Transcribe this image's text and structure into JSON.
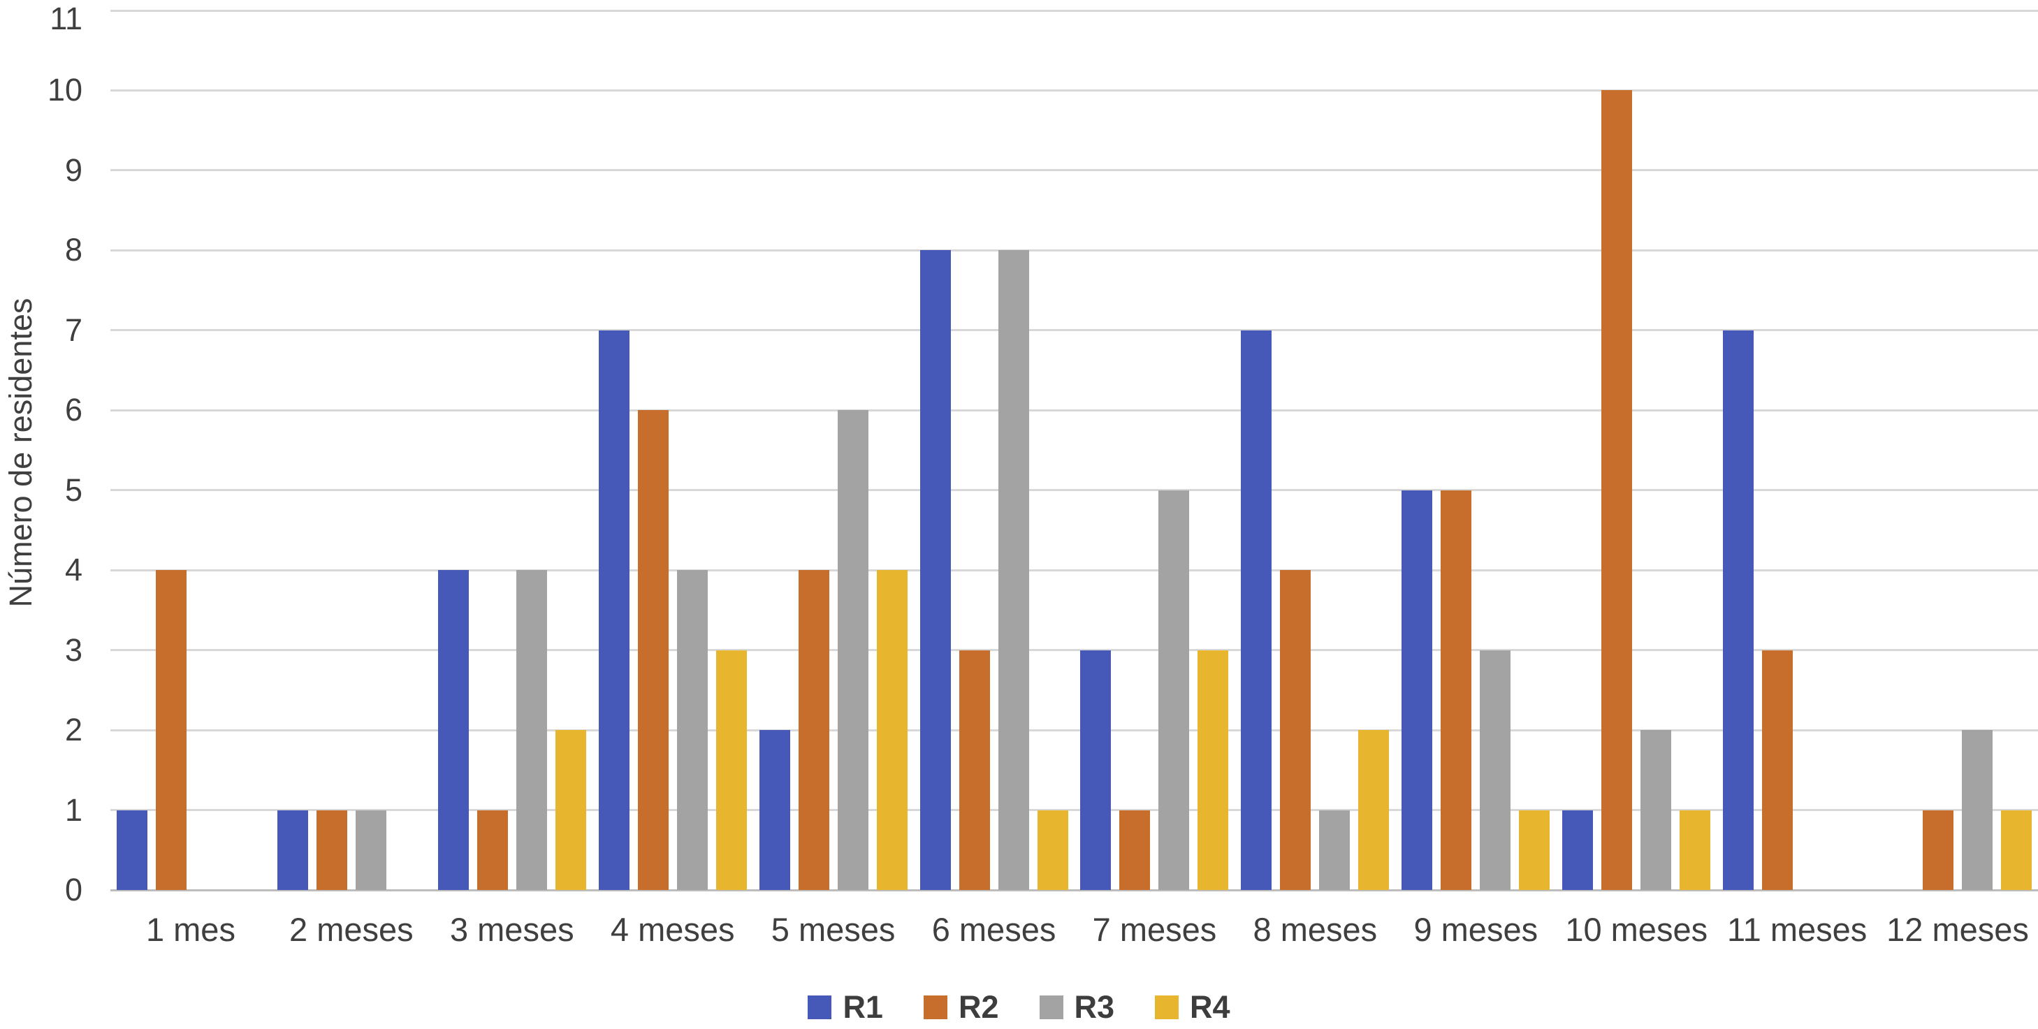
{
  "chart_data": {
    "type": "bar",
    "title": "",
    "xlabel": "",
    "ylabel": "Número de residentes",
    "ylim": [
      0,
      11
    ],
    "ytick_step": 1,
    "y_ticks": [
      "0",
      "1",
      "2",
      "3",
      "4",
      "5",
      "6",
      "7",
      "8",
      "9",
      "10",
      "11"
    ],
    "grid": true,
    "legend_position": "bottom",
    "categories": [
      "1 mes",
      "2 meses",
      "3 meses",
      "4 meses",
      "5 meses",
      "6 meses",
      "7 meses",
      "8 meses",
      "9 meses",
      "10 meses",
      "11 meses",
      "12 meses"
    ],
    "series": [
      {
        "name": "R1",
        "color": "#4759b8",
        "values": [
          1,
          1,
          4,
          7,
          2,
          8,
          3,
          7,
          5,
          1,
          7,
          0
        ]
      },
      {
        "name": "R2",
        "color": "#c76e2d",
        "values": [
          4,
          1,
          1,
          6,
          4,
          3,
          1,
          4,
          5,
          10,
          3,
          1
        ]
      },
      {
        "name": "R3",
        "color": "#a3a3a3",
        "values": [
          0,
          1,
          4,
          4,
          6,
          8,
          5,
          1,
          3,
          2,
          0,
          2
        ]
      },
      {
        "name": "R4",
        "color": "#e8b52e",
        "values": [
          0,
          0,
          2,
          3,
          4,
          1,
          3,
          2,
          1,
          1,
          0,
          1
        ]
      }
    ]
  },
  "style_colors": {
    "gridline": "#d8d8d8",
    "axis_line": "#bdbdbd",
    "text": "#3f3f3f"
  }
}
